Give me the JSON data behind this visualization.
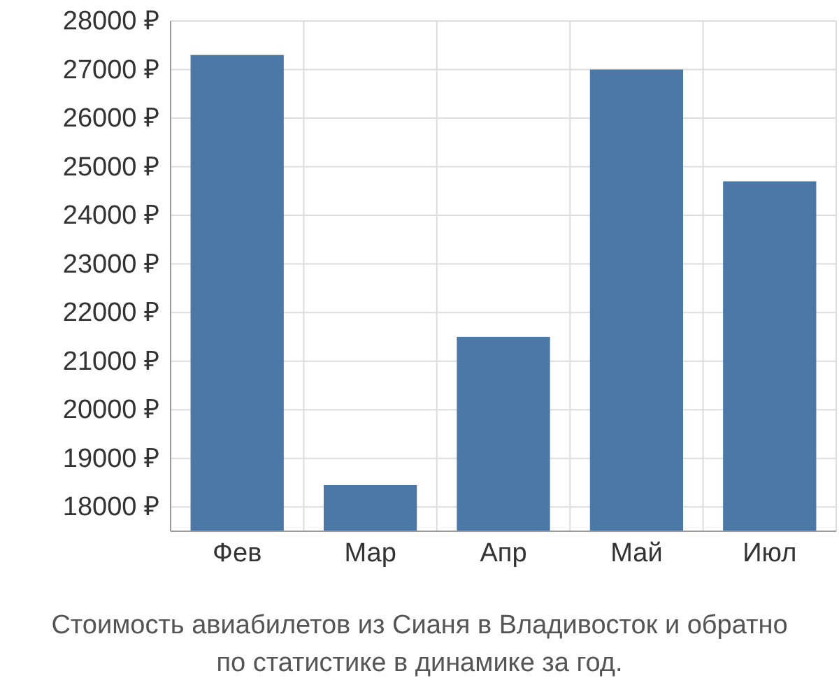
{
  "chart_data": {
    "type": "bar",
    "categories": [
      "Фев",
      "Мар",
      "Апр",
      "Май",
      "Июл"
    ],
    "values": [
      27300,
      18450,
      21500,
      27000,
      24700
    ],
    "color": "#4c78a8",
    "ylim": [
      17500,
      28000
    ],
    "yticks": [
      {
        "value": 18000,
        "label": "18000 ₽"
      },
      {
        "value": 19000,
        "label": "19000 ₽"
      },
      {
        "value": 20000,
        "label": "20000 ₽"
      },
      {
        "value": 21000,
        "label": "21000 ₽"
      },
      {
        "value": 22000,
        "label": "22000 ₽"
      },
      {
        "value": 23000,
        "label": "23000 ₽"
      },
      {
        "value": 24000,
        "label": "24000 ₽"
      },
      {
        "value": 25000,
        "label": "25000 ₽"
      },
      {
        "value": 26000,
        "label": "26000 ₽"
      },
      {
        "value": 27000,
        "label": "27000 ₽"
      },
      {
        "value": 28000,
        "label": "28000 ₽"
      }
    ],
    "grid": true,
    "annotations": [
      "Стоимость авиабилетов из Сианя в Владивосток и обратно",
      "по статистике в динамике за год."
    ]
  }
}
